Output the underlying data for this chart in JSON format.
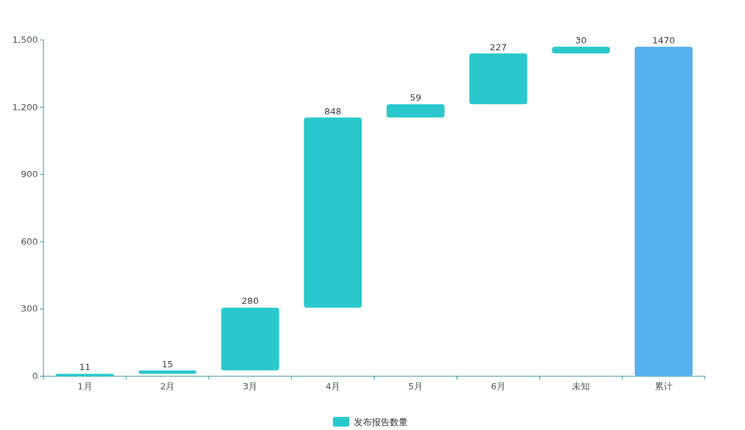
{
  "chart_data": {
    "type": "bar",
    "categories": [
      "1月",
      "2月",
      "3月",
      "4月",
      "5月",
      "6月",
      "未知",
      "累计"
    ],
    "series": [
      {
        "name": "发布报告数量",
        "color": "#2ac8cc",
        "colors": [
          "#2ac8cc",
          "#2ac8cc",
          "#2ac8cc",
          "#2ac8cc",
          "#2ac8cc",
          "#2ac8cc",
          "#2ac8cc",
          "#5ab1ef"
        ],
        "values": [
          11,
          15,
          280,
          848,
          59,
          227,
          30,
          1470
        ],
        "base": [
          0,
          11,
          26,
          306,
          1154,
          1213,
          1440,
          0
        ]
      }
    ],
    "ylim": [
      0,
      1500
    ],
    "yticks": [
      0,
      300,
      600,
      900,
      {
        "value": 1200,
        "label": "1,200"
      },
      {
        "value": 1500,
        "label": "1,500"
      }
    ],
    "data_labels": true,
    "legend": "bottom",
    "grid": false
  }
}
